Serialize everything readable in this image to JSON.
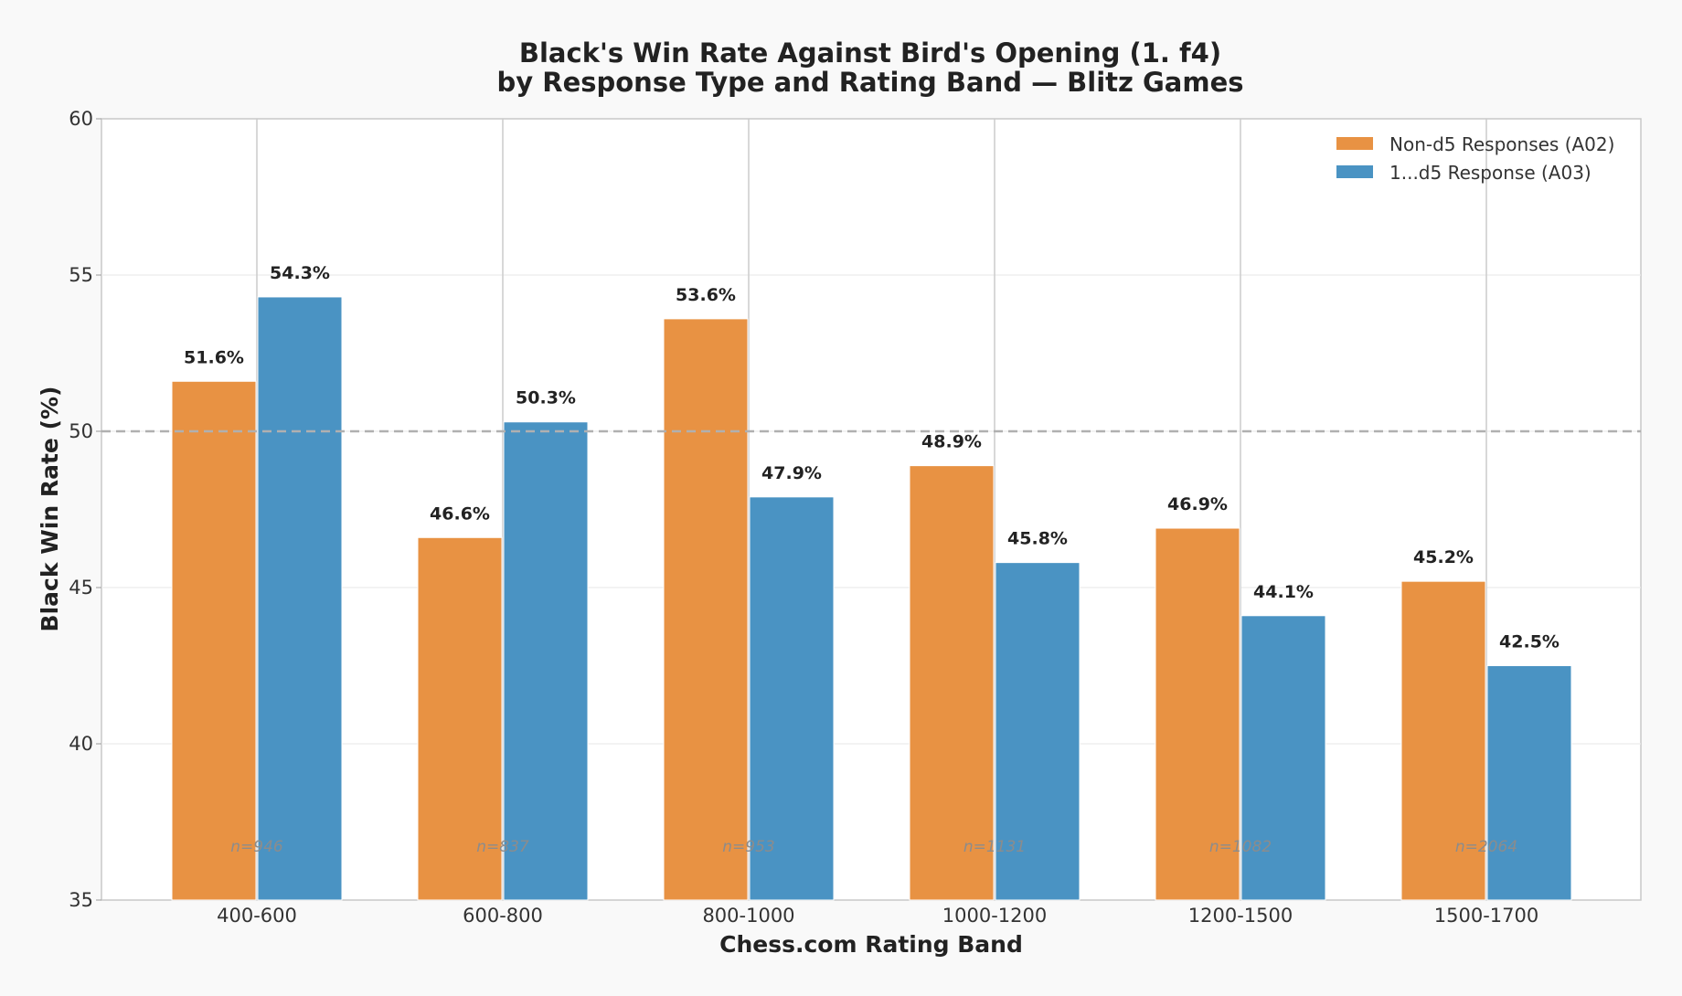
{
  "chart_data": {
    "type": "bar",
    "title": "Black's Win Rate Against Bird's Opening (1. f4)",
    "subtitle": "by Response Type and Rating Band — Blitz Games",
    "xlabel": "Chess.com Rating Band",
    "ylabel": "Black Win Rate (%)",
    "ylim": [
      35,
      60
    ],
    "yticks": [
      35,
      40,
      45,
      50,
      55,
      60
    ],
    "reference_line": 50,
    "grid": true,
    "legend_position": "top-right",
    "categories": [
      "400-600",
      "600-800",
      "800-1000",
      "1000-1200",
      "1200-1500",
      "1500-1700"
    ],
    "series": [
      {
        "name": "Non-d5 Responses (A02)",
        "color": "#e89243",
        "values": [
          51.6,
          46.6,
          53.6,
          48.9,
          46.9,
          45.2
        ],
        "labels": [
          "51.6%",
          "46.6%",
          "53.6%",
          "48.9%",
          "46.9%",
          "45.2%"
        ]
      },
      {
        "name": "1...d5 Response (A03)",
        "color": "#4a93c3",
        "values": [
          54.3,
          50.3,
          47.9,
          45.8,
          44.1,
          42.5
        ],
        "labels": [
          "54.3%",
          "50.3%",
          "47.9%",
          "45.8%",
          "44.1%",
          "42.5%"
        ]
      }
    ],
    "sample_sizes": [
      "n=946",
      "n=837",
      "n=953",
      "n=1131",
      "n=1082",
      "n=2064"
    ]
  }
}
